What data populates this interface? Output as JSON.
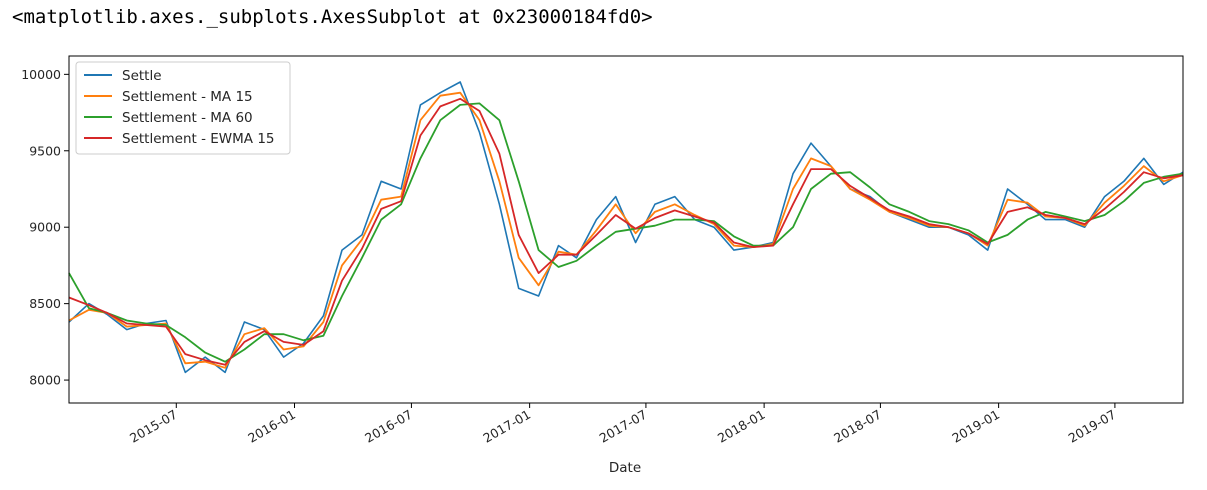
{
  "output_repr": "<matplotlib.axes._subplots.AxesSubplot at 0x23000184fd0>",
  "chart_data": {
    "type": "line",
    "title": "",
    "xlabel": "Date",
    "ylabel": "",
    "xlim": [
      "2015-01-15",
      "2019-10-15"
    ],
    "ylim": [
      7850,
      10120
    ],
    "grid": false,
    "legend_position": "top-left",
    "x_ticks": [
      "2015-07",
      "2016-01",
      "2016-07",
      "2017-01",
      "2017-07",
      "2018-01",
      "2018-07",
      "2019-01",
      "2019-07"
    ],
    "y_ticks": [
      8000,
      8500,
      9000,
      9500,
      10000
    ],
    "x": [
      "2015-01-15",
      "2015-02-15",
      "2015-03-15",
      "2015-04-15",
      "2015-05-15",
      "2015-06-15",
      "2015-07-15",
      "2015-08-15",
      "2015-09-15",
      "2015-10-15",
      "2015-11-15",
      "2015-12-15",
      "2016-01-15",
      "2016-02-15",
      "2016-03-15",
      "2016-04-15",
      "2016-05-15",
      "2016-06-15",
      "2016-07-15",
      "2016-08-15",
      "2016-09-15",
      "2016-10-15",
      "2016-11-15",
      "2016-12-15",
      "2017-01-15",
      "2017-02-15",
      "2017-03-15",
      "2017-04-15",
      "2017-05-15",
      "2017-06-15",
      "2017-07-15",
      "2017-08-15",
      "2017-09-15",
      "2017-10-15",
      "2017-11-15",
      "2017-12-15",
      "2018-01-15",
      "2018-02-15",
      "2018-03-15",
      "2018-04-15",
      "2018-05-15",
      "2018-06-15",
      "2018-07-15",
      "2018-08-15",
      "2018-09-15",
      "2018-10-15",
      "2018-11-15",
      "2018-12-15",
      "2019-01-15",
      "2019-02-15",
      "2019-03-15",
      "2019-04-15",
      "2019-05-15",
      "2019-06-15",
      "2019-07-15",
      "2019-08-15",
      "2019-09-15",
      "2019-10-15"
    ],
    "series": [
      {
        "name": "Settle",
        "color": "#1f77b4",
        "values": [
          8380,
          8500,
          8430,
          8330,
          8370,
          8390,
          8050,
          8150,
          8050,
          8380,
          8330,
          8150,
          8240,
          8420,
          8850,
          8950,
          9300,
          9250,
          9800,
          9880,
          9950,
          9620,
          9150,
          8600,
          8550,
          8880,
          8800,
          9050,
          9200,
          8900,
          9150,
          9200,
          9050,
          9000,
          8850,
          8870,
          8900,
          9350,
          9550,
          9400,
          9250,
          9200,
          9100,
          9050,
          9000,
          9000,
          8950,
          8850,
          9250,
          9150,
          9050,
          9050,
          9000,
          9200,
          9300,
          9450,
          9280,
          9360
        ]
      },
      {
        "name": "Settlement - MA 15",
        "color": "#ff7f0e",
        "values": [
          8390,
          8460,
          8440,
          8350,
          8360,
          8370,
          8110,
          8120,
          8080,
          8300,
          8340,
          8200,
          8220,
          8380,
          8750,
          8920,
          9180,
          9200,
          9700,
          9860,
          9880,
          9700,
          9300,
          8800,
          8620,
          8840,
          8820,
          8980,
          9150,
          8960,
          9100,
          9150,
          9080,
          9020,
          8880,
          8870,
          8890,
          9250,
          9450,
          9400,
          9250,
          9180,
          9100,
          9060,
          9010,
          9000,
          8960,
          8880,
          9180,
          9160,
          9070,
          9060,
          9010,
          9160,
          9270,
          9400,
          9300,
          9340
        ]
      },
      {
        "name": "Settlement - MA 60",
        "color": "#2ca02c",
        "values": [
          8700,
          8470,
          8440,
          8390,
          8370,
          8360,
          8280,
          8180,
          8120,
          8200,
          8300,
          8300,
          8260,
          8290,
          8550,
          8800,
          9050,
          9150,
          9450,
          9700,
          9800,
          9810,
          9700,
          9300,
          8850,
          8740,
          8780,
          8880,
          8970,
          8990,
          9010,
          9050,
          9050,
          9040,
          8940,
          8880,
          8880,
          9000,
          9250,
          9350,
          9360,
          9260,
          9150,
          9100,
          9040,
          9020,
          8980,
          8900,
          8950,
          9050,
          9100,
          9070,
          9040,
          9080,
          9170,
          9290,
          9330,
          9350
        ]
      },
      {
        "name": "Settlement - EWMA 15",
        "color": "#d62728",
        "values": [
          8540,
          8490,
          8440,
          8370,
          8360,
          8350,
          8170,
          8130,
          8100,
          8250,
          8320,
          8250,
          8230,
          8320,
          8650,
          8860,
          9120,
          9170,
          9600,
          9790,
          9840,
          9760,
          9480,
          8950,
          8700,
          8820,
          8820,
          8950,
          9080,
          8990,
          9060,
          9110,
          9070,
          9030,
          8900,
          8870,
          8880,
          9150,
          9380,
          9380,
          9270,
          9190,
          9110,
          9070,
          9020,
          9000,
          8960,
          8890,
          9100,
          9130,
          9080,
          9060,
          9020,
          9120,
          9230,
          9360,
          9320,
          9340
        ]
      }
    ]
  }
}
